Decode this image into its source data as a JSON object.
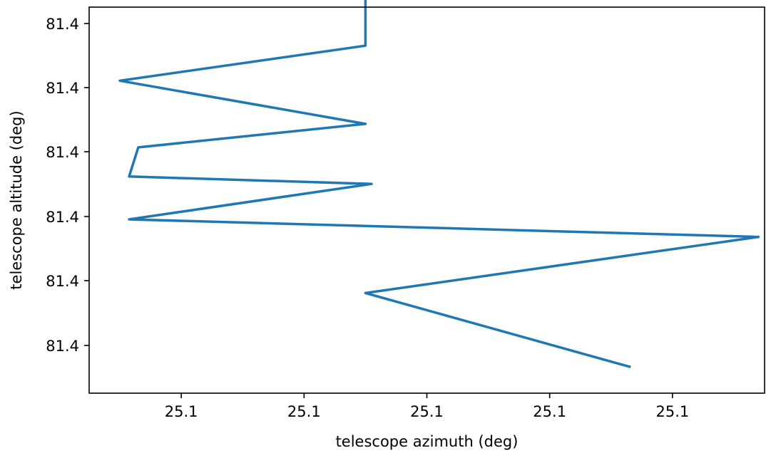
{
  "chart_data": {
    "type": "line",
    "title": "",
    "xlabel": "telescope azimuth (deg)",
    "ylabel": "telescope altitude (deg)",
    "grid": false,
    "legend": "none",
    "xlim": [
      0.0,
      1.1
    ],
    "ylim": [
      0.0,
      1.1
    ],
    "x_ticks": [
      {
        "value": 0.15,
        "label": "25.1"
      },
      {
        "value": 0.35,
        "label": "25.1"
      },
      {
        "value": 0.55,
        "label": "25.1"
      },
      {
        "value": 0.75,
        "label": "25.1"
      },
      {
        "value": 0.95,
        "label": "25.1"
      }
    ],
    "y_ticks": [
      {
        "value": 0.15,
        "label": "81.4"
      },
      {
        "value": 0.35,
        "label": "81.4"
      },
      {
        "value": 0.55,
        "label": "81.4"
      },
      {
        "value": 0.75,
        "label": "81.4"
      },
      {
        "value": 0.95,
        "label": "81.4"
      },
      {
        "value": 1.15,
        "label": "81.4"
      }
    ],
    "series": [
      {
        "color": "#1f77b4",
        "x": [
          0.45,
          0.45,
          0.05,
          0.45,
          0.08,
          0.065,
          0.46,
          0.065,
          1.09,
          0.45,
          0.88
        ],
        "y": [
          1.15,
          0.97,
          0.87,
          0.747,
          0.68,
          0.597,
          0.576,
          0.475,
          0.425,
          0.265,
          0.055
        ]
      }
    ]
  }
}
